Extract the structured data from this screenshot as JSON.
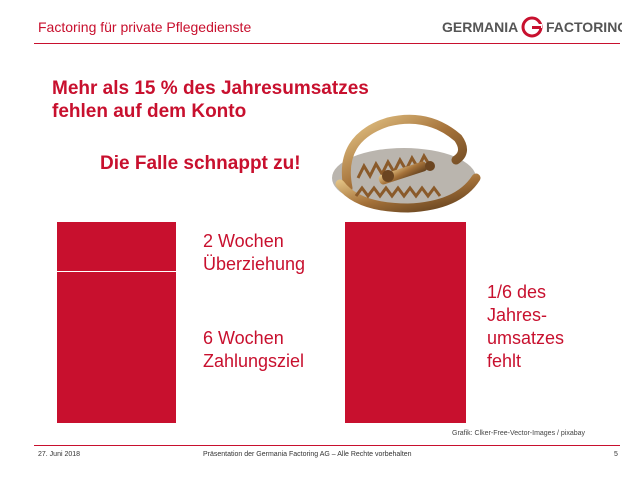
{
  "header": {
    "title": "Factoring für private Pflegedienste",
    "logo_left": "GERMANIA",
    "logo_right": "FACTORING"
  },
  "slide": {
    "headline_line1": "Mehr als 15 % des Jahresumsatzes",
    "headline_line2": "fehlen auf dem Konto",
    "subline": "Die Falle schnappt zu!",
    "label_overdraft": "2 Wochen\nÜberziehung",
    "label_payment": "6 Wochen\nZahlungsziel",
    "label_missing": "1/6 des\nJahres-\numsatzes\nfehlt",
    "credit": "Grafik: Clker-Free-Vector-Images / pixabay"
  },
  "footer": {
    "date": "27. Juni 2018",
    "center": "Präsentation der Germania Factoring AG – Alle Rechte vorbehalten",
    "page": "5"
  },
  "colors": {
    "brand_red": "#c8102e"
  }
}
